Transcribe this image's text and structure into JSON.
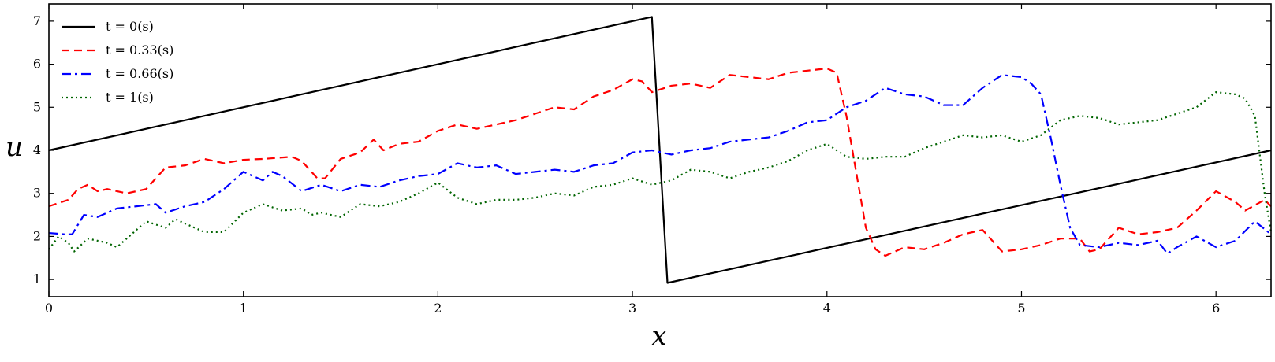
{
  "chart_data": {
    "type": "line",
    "xlabel": "x",
    "ylabel": "u",
    "xlim": [
      0,
      6.283
    ],
    "ylim": [
      0.6,
      7.4
    ],
    "xticks": [
      0,
      1,
      2,
      3,
      4,
      5,
      6
    ],
    "yticks": [
      1,
      2,
      3,
      4,
      5,
      6,
      7
    ],
    "xtick_labels": [
      "0",
      "1",
      "2",
      "3",
      "4",
      "5",
      "6"
    ],
    "ytick_labels": [
      "1",
      "2",
      "3",
      "4",
      "5",
      "6",
      "7"
    ],
    "grid": false,
    "legend_position": "top-left",
    "series": [
      {
        "name": "t = 0(s)",
        "color": "#000000",
        "dash": "solid",
        "points": [
          [
            0,
            4.0
          ],
          [
            3.1,
            7.1
          ],
          [
            3.18,
            0.92
          ],
          [
            6.283,
            4.0
          ]
        ]
      },
      {
        "name": "t = 0.33(s)",
        "color": "#ff0000",
        "dash": "dashed",
        "points": [
          [
            0,
            2.7
          ],
          [
            0.1,
            2.85
          ],
          [
            0.15,
            3.1
          ],
          [
            0.2,
            3.2
          ],
          [
            0.25,
            3.05
          ],
          [
            0.3,
            3.1
          ],
          [
            0.4,
            3.0
          ],
          [
            0.5,
            3.1
          ],
          [
            0.6,
            3.6
          ],
          [
            0.7,
            3.65
          ],
          [
            0.8,
            3.8
          ],
          [
            0.9,
            3.7
          ],
          [
            1.0,
            3.78
          ],
          [
            1.1,
            3.8
          ],
          [
            1.25,
            3.85
          ],
          [
            1.3,
            3.75
          ],
          [
            1.38,
            3.35
          ],
          [
            1.42,
            3.35
          ],
          [
            1.5,
            3.8
          ],
          [
            1.6,
            3.95
          ],
          [
            1.67,
            4.25
          ],
          [
            1.72,
            4.0
          ],
          [
            1.8,
            4.15
          ],
          [
            1.9,
            4.2
          ],
          [
            2.0,
            4.45
          ],
          [
            2.1,
            4.6
          ],
          [
            2.2,
            4.5
          ],
          [
            2.3,
            4.6
          ],
          [
            2.4,
            4.7
          ],
          [
            2.5,
            4.85
          ],
          [
            2.6,
            5.0
          ],
          [
            2.7,
            4.95
          ],
          [
            2.8,
            5.25
          ],
          [
            2.9,
            5.4
          ],
          [
            3.0,
            5.65
          ],
          [
            3.05,
            5.6
          ],
          [
            3.1,
            5.35
          ],
          [
            3.2,
            5.5
          ],
          [
            3.3,
            5.55
          ],
          [
            3.4,
            5.45
          ],
          [
            3.5,
            5.75
          ],
          [
            3.6,
            5.7
          ],
          [
            3.7,
            5.65
          ],
          [
            3.8,
            5.8
          ],
          [
            3.9,
            5.85
          ],
          [
            4.0,
            5.9
          ],
          [
            4.05,
            5.8
          ],
          [
            4.1,
            4.8
          ],
          [
            4.15,
            3.5
          ],
          [
            4.2,
            2.2
          ],
          [
            4.25,
            1.7
          ],
          [
            4.3,
            1.55
          ],
          [
            4.4,
            1.75
          ],
          [
            4.5,
            1.7
          ],
          [
            4.6,
            1.85
          ],
          [
            4.7,
            2.05
          ],
          [
            4.8,
            2.15
          ],
          [
            4.9,
            1.65
          ],
          [
            5.0,
            1.7
          ],
          [
            5.1,
            1.8
          ],
          [
            5.2,
            1.95
          ],
          [
            5.3,
            1.95
          ],
          [
            5.35,
            1.65
          ],
          [
            5.4,
            1.7
          ],
          [
            5.5,
            2.2
          ],
          [
            5.6,
            2.05
          ],
          [
            5.7,
            2.1
          ],
          [
            5.8,
            2.2
          ],
          [
            5.9,
            2.6
          ],
          [
            6.0,
            3.05
          ],
          [
            6.1,
            2.8
          ],
          [
            6.15,
            2.6
          ],
          [
            6.25,
            2.85
          ],
          [
            6.283,
            2.7
          ]
        ]
      },
      {
        "name": "t = 0.66(s)",
        "color": "#0000ff",
        "dash": "dashdot",
        "points": [
          [
            0,
            2.08
          ],
          [
            0.08,
            2.05
          ],
          [
            0.12,
            2.05
          ],
          [
            0.18,
            2.5
          ],
          [
            0.25,
            2.45
          ],
          [
            0.35,
            2.65
          ],
          [
            0.45,
            2.7
          ],
          [
            0.55,
            2.75
          ],
          [
            0.6,
            2.55
          ],
          [
            0.7,
            2.7
          ],
          [
            0.8,
            2.8
          ],
          [
            0.9,
            3.1
          ],
          [
            1.0,
            3.5
          ],
          [
            1.1,
            3.3
          ],
          [
            1.15,
            3.5
          ],
          [
            1.2,
            3.4
          ],
          [
            1.3,
            3.05
          ],
          [
            1.4,
            3.2
          ],
          [
            1.5,
            3.05
          ],
          [
            1.6,
            3.2
          ],
          [
            1.7,
            3.15
          ],
          [
            1.8,
            3.3
          ],
          [
            1.9,
            3.4
          ],
          [
            2.0,
            3.45
          ],
          [
            2.1,
            3.7
          ],
          [
            2.2,
            3.6
          ],
          [
            2.3,
            3.65
          ],
          [
            2.4,
            3.45
          ],
          [
            2.5,
            3.5
          ],
          [
            2.6,
            3.55
          ],
          [
            2.7,
            3.5
          ],
          [
            2.8,
            3.65
          ],
          [
            2.9,
            3.7
          ],
          [
            3.0,
            3.95
          ],
          [
            3.1,
            4.0
          ],
          [
            3.2,
            3.9
          ],
          [
            3.3,
            4.0
          ],
          [
            3.4,
            4.05
          ],
          [
            3.5,
            4.2
          ],
          [
            3.6,
            4.25
          ],
          [
            3.7,
            4.3
          ],
          [
            3.8,
            4.45
          ],
          [
            3.9,
            4.65
          ],
          [
            4.0,
            4.7
          ],
          [
            4.05,
            4.85
          ],
          [
            4.1,
            5.0
          ],
          [
            4.2,
            5.15
          ],
          [
            4.3,
            5.45
          ],
          [
            4.4,
            5.3
          ],
          [
            4.5,
            5.25
          ],
          [
            4.6,
            5.05
          ],
          [
            4.7,
            5.05
          ],
          [
            4.8,
            5.45
          ],
          [
            4.9,
            5.75
          ],
          [
            5.0,
            5.7
          ],
          [
            5.05,
            5.55
          ],
          [
            5.1,
            5.3
          ],
          [
            5.15,
            4.3
          ],
          [
            5.2,
            3.2
          ],
          [
            5.25,
            2.2
          ],
          [
            5.3,
            1.8
          ],
          [
            5.4,
            1.75
          ],
          [
            5.5,
            1.85
          ],
          [
            5.6,
            1.8
          ],
          [
            5.7,
            1.9
          ],
          [
            5.75,
            1.6
          ],
          [
            5.8,
            1.75
          ],
          [
            5.9,
            2.0
          ],
          [
            6.0,
            1.75
          ],
          [
            6.1,
            1.9
          ],
          [
            6.2,
            2.35
          ],
          [
            6.283,
            2.05
          ]
        ]
      },
      {
        "name": "t = 1(s)",
        "color": "#006400",
        "dash": "dotted",
        "points": [
          [
            0,
            1.7
          ],
          [
            0.05,
            2.0
          ],
          [
            0.1,
            1.85
          ],
          [
            0.13,
            1.65
          ],
          [
            0.2,
            1.95
          ],
          [
            0.3,
            1.85
          ],
          [
            0.35,
            1.75
          ],
          [
            0.4,
            1.95
          ],
          [
            0.5,
            2.35
          ],
          [
            0.6,
            2.2
          ],
          [
            0.65,
            2.4
          ],
          [
            0.7,
            2.3
          ],
          [
            0.8,
            2.1
          ],
          [
            0.9,
            2.1
          ],
          [
            1.0,
            2.55
          ],
          [
            1.1,
            2.75
          ],
          [
            1.2,
            2.6
          ],
          [
            1.3,
            2.65
          ],
          [
            1.35,
            2.5
          ],
          [
            1.4,
            2.55
          ],
          [
            1.5,
            2.45
          ],
          [
            1.6,
            2.75
          ],
          [
            1.7,
            2.7
          ],
          [
            1.8,
            2.8
          ],
          [
            1.9,
            3.0
          ],
          [
            2.0,
            3.25
          ],
          [
            2.1,
            2.9
          ],
          [
            2.2,
            2.75
          ],
          [
            2.3,
            2.85
          ],
          [
            2.4,
            2.85
          ],
          [
            2.5,
            2.9
          ],
          [
            2.6,
            3.0
          ],
          [
            2.7,
            2.95
          ],
          [
            2.8,
            3.15
          ],
          [
            2.9,
            3.2
          ],
          [
            3.0,
            3.35
          ],
          [
            3.1,
            3.2
          ],
          [
            3.2,
            3.3
          ],
          [
            3.3,
            3.55
          ],
          [
            3.4,
            3.5
          ],
          [
            3.5,
            3.35
          ],
          [
            3.6,
            3.5
          ],
          [
            3.7,
            3.6
          ],
          [
            3.8,
            3.75
          ],
          [
            3.9,
            4.0
          ],
          [
            4.0,
            4.15
          ],
          [
            4.1,
            3.85
          ],
          [
            4.2,
            3.8
          ],
          [
            4.3,
            3.85
          ],
          [
            4.4,
            3.85
          ],
          [
            4.5,
            4.05
          ],
          [
            4.6,
            4.2
          ],
          [
            4.7,
            4.35
          ],
          [
            4.8,
            4.3
          ],
          [
            4.9,
            4.35
          ],
          [
            5.0,
            4.2
          ],
          [
            5.1,
            4.35
          ],
          [
            5.2,
            4.7
          ],
          [
            5.3,
            4.8
          ],
          [
            5.4,
            4.75
          ],
          [
            5.5,
            4.6
          ],
          [
            5.6,
            4.65
          ],
          [
            5.7,
            4.7
          ],
          [
            5.8,
            4.85
          ],
          [
            5.9,
            5.0
          ],
          [
            6.0,
            5.35
          ],
          [
            6.1,
            5.3
          ],
          [
            6.15,
            5.2
          ],
          [
            6.2,
            4.8
          ],
          [
            6.25,
            3.0
          ],
          [
            6.283,
            2.1
          ]
        ]
      }
    ]
  }
}
